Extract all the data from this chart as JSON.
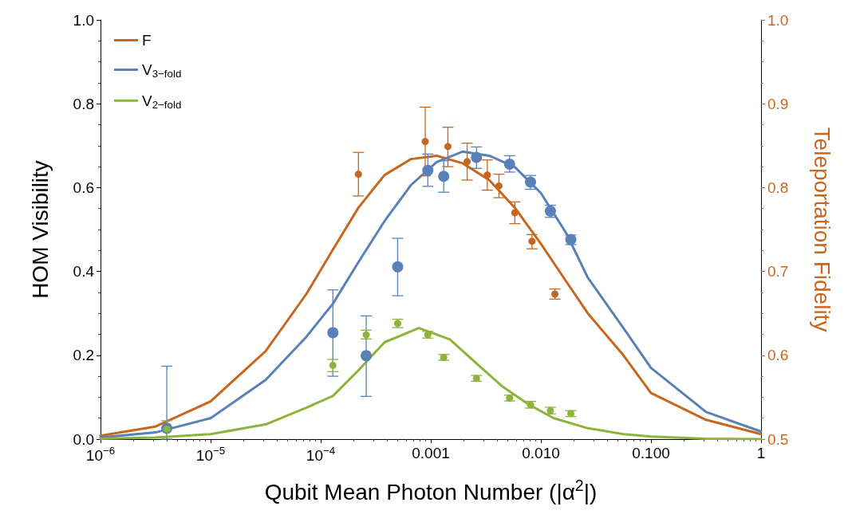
{
  "chart_data": {
    "type": "line",
    "xlabel": "Qubit Mean Photon Number (|α$^{2}$|)",
    "ylabel": "HOM Visibility",
    "y2label": "Teleportation Fidelity",
    "log": "x",
    "grid": false,
    "legend": "top left",
    "line_style": "solid",
    "xlim": [
      1e-06,
      1
    ],
    "xticks": [
      {
        "value": 1e-06,
        "label": "10$^{−6}$"
      },
      {
        "value": 1e-05,
        "label": "10$^{−5}$"
      },
      {
        "value": 0.0001,
        "label": "10$^{−4}$"
      },
      0.001,
      {
        "value": 0.01,
        "label": "0.010"
      },
      {
        "value": 0.1,
        "label": "0.100"
      },
      1
    ],
    "ylim": [
      0,
      1
    ],
    "yticks": [
      {
        "value": 0,
        "label": "0.0"
      },
      0.2,
      0.4,
      0.6,
      0.8,
      {
        "value": 1,
        "label": "1.0"
      }
    ],
    "y2lim": [
      0.5,
      1
    ],
    "y2ticks": [
      0.5,
      0.6,
      0.7,
      0.8,
      0.9,
      {
        "value": 1,
        "label": "1.0"
      }
    ],
    "series": [
      {
        "name": "F",
        "marker": "none",
        "axis": "y2",
        "color": "#c8661e",
        "x": [
          1e-06,
          3.16e-06,
          1e-05,
          3.16e-05,
          7.4e-05,
          0.000129,
          0.00022,
          0.00038,
          0.00066,
          0.00113,
          0.00195,
          0.0034,
          0.0058,
          0.01,
          0.0172,
          0.0267,
          0.0562,
          0.1,
          0.316,
          1
        ],
        "values": [
          0.504,
          0.515,
          0.545,
          0.605,
          0.673,
          0.726,
          0.776,
          0.815,
          0.834,
          0.838,
          0.829,
          0.809,
          0.776,
          0.733,
          0.687,
          0.65,
          0.6,
          0.555,
          0.523,
          0.506
        ]
      },
      {
        "name": "V$_{3−fold}$",
        "marker": "none",
        "color": "#5a80b8",
        "x": [
          1e-06,
          3.16e-06,
          1e-05,
          3.16e-05,
          7.4e-05,
          0.000129,
          0.00022,
          0.00038,
          0.00066,
          0.00113,
          0.00195,
          0.0034,
          0.0058,
          0.01,
          0.0172,
          0.0267,
          0.0562,
          0.1,
          0.316,
          1
        ],
        "values": [
          0.004,
          0.016,
          0.05,
          0.141,
          0.244,
          0.323,
          0.422,
          0.52,
          0.606,
          0.661,
          0.686,
          0.676,
          0.649,
          0.587,
          0.489,
          0.385,
          0.265,
          0.17,
          0.065,
          0.018
        ]
      },
      {
        "name": "V$_{2−fold}$",
        "marker": "none",
        "color": "#8db33a",
        "x": [
          1e-06,
          3.16e-06,
          1e-05,
          3.16e-05,
          7.4e-05,
          0.000129,
          0.00022,
          0.00038,
          0.00078,
          0.00149,
          0.00257,
          0.0044,
          0.0076,
          0.0131,
          0.0267,
          0.0562,
          0.1,
          0.316,
          1
        ],
        "values": [
          0.001,
          0.004,
          0.012,
          0.035,
          0.075,
          0.103,
          0.164,
          0.231,
          0.265,
          0.238,
          0.182,
          0.127,
          0.084,
          0.05,
          0.026,
          0.012,
          0.006,
          0.001,
          0
        ]
      },
      {
        "type": "scatter",
        "marker": "circle",
        "axis": "y2",
        "color": "#c8661e",
        "x": [
          0.00022,
          0.00089,
          0.00143,
          0.00214,
          0.00326,
          0.00416,
          0.0058,
          0.0083,
          0.0134
        ],
        "values": [
          0.816,
          0.855,
          0.849,
          0.831,
          0.815,
          0.802,
          0.77,
          0.736,
          0.673
        ],
        "errors": [
          [
            0.79,
            0.842
          ],
          [
            0.814,
            0.896
          ],
          [
            0.825,
            0.872
          ],
          [
            0.809,
            0.853
          ],
          [
            0.797,
            0.833
          ],
          [
            0.788,
            0.816
          ],
          [
            0.757,
            0.783
          ],
          [
            0.727,
            0.744
          ],
          [
            0.667,
            0.679
          ]
        ]
      },
      {
        "type": "scatter",
        "marker": "circle",
        "color": "#5a80b8",
        "x": [
          4e-06,
          0.000129,
          0.000259,
          0.0005,
          0.00094,
          0.00131,
          0.0026,
          0.0052,
          0.00805,
          0.0122,
          0.0187
        ],
        "values": [
          0.026,
          0.254,
          0.199,
          0.411,
          0.641,
          0.627,
          0.672,
          0.656,
          0.613,
          0.544,
          0.476
        ],
        "errors": [
          [
            0,
            0.174
          ],
          [
            0.15,
            0.356
          ],
          [
            0.102,
            0.294
          ],
          [
            0.342,
            0.479
          ],
          [
            0.603,
            0.68
          ],
          [
            0.589,
            0.664
          ],
          [
            0.646,
            0.697
          ],
          [
            0.637,
            0.676
          ],
          [
            0.596,
            0.629
          ],
          [
            0.529,
            0.558
          ],
          [
            0.464,
            0.487
          ]
        ]
      },
      {
        "type": "scatter",
        "marker": "circle",
        "color": "#8db33a",
        "x": [
          4e-06,
          0.000129,
          0.000259,
          0.0005,
          0.00094,
          0.00131,
          0.0026,
          0.0052,
          0.00805,
          0.0122,
          0.0187
        ],
        "values": [
          0.024,
          0.176,
          0.249,
          0.276,
          0.249,
          0.195,
          0.145,
          0.098,
          0.082,
          0.068,
          0.061
        ],
        "errors": [
          [
            0.005,
            0.044
          ],
          [
            0.161,
            0.19
          ],
          [
            0.239,
            0.26
          ],
          0.01,
          0.008,
          0.007,
          0.007,
          0.007,
          0.008,
          0.008,
          0.007
        ]
      }
    ]
  }
}
